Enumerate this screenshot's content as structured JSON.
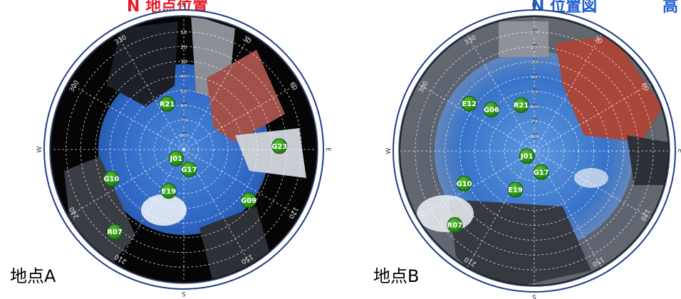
{
  "title": {
    "left_fragment": "N 地点位置",
    "right_fragment": "N 位置図",
    "right_edge_fragment": "高"
  },
  "colors": {
    "title_red": "#e8192c",
    "title_blue": "#1f5fd0",
    "satellite_fill": "#2e9a17",
    "sky_blue": "#2f67c4",
    "frame_outer": "#1f3f86"
  },
  "compass": {
    "north": "N",
    "east": "E",
    "south": "S",
    "west": "W",
    "azimuth_labels": [
      "30",
      "60",
      "120",
      "150",
      "210",
      "240",
      "300",
      "330"
    ]
  },
  "elevation_labels": [
    "80",
    "70",
    "60",
    "50",
    "40",
    "30",
    "20",
    "10"
  ],
  "sites": [
    {
      "label": "地点A",
      "satellites": [
        {
          "id": "R21",
          "azimuth": 340,
          "elevation": 57
        },
        {
          "id": "J01",
          "azimuth": 220,
          "elevation": 82
        },
        {
          "id": "G23",
          "azimuth": 88,
          "elevation": 25
        },
        {
          "id": "G17",
          "azimuth": 165,
          "elevation": 76
        },
        {
          "id": "E19",
          "azimuth": 200,
          "elevation": 60
        },
        {
          "id": "G10",
          "azimuth": 248,
          "elevation": 37
        },
        {
          "id": "G09",
          "azimuth": 128,
          "elevation": 34
        },
        {
          "id": "R07",
          "azimuth": 220,
          "elevation": 17
        }
      ]
    },
    {
      "label": "地点B",
      "satellites": [
        {
          "id": "E12",
          "azimuth": 306,
          "elevation": 36
        },
        {
          "id": "G06",
          "azimuth": 314,
          "elevation": 50
        },
        {
          "id": "R21",
          "azimuth": 344,
          "elevation": 58
        },
        {
          "id": "J01",
          "azimuth": 235,
          "elevation": 84
        },
        {
          "id": "G17",
          "azimuth": 162,
          "elevation": 75
        },
        {
          "id": "G10",
          "azimuth": 245,
          "elevation": 38
        },
        {
          "id": "E19",
          "azimuth": 206,
          "elevation": 61
        },
        {
          "id": "R07",
          "azimuth": 227,
          "elevation": 17
        }
      ]
    }
  ]
}
